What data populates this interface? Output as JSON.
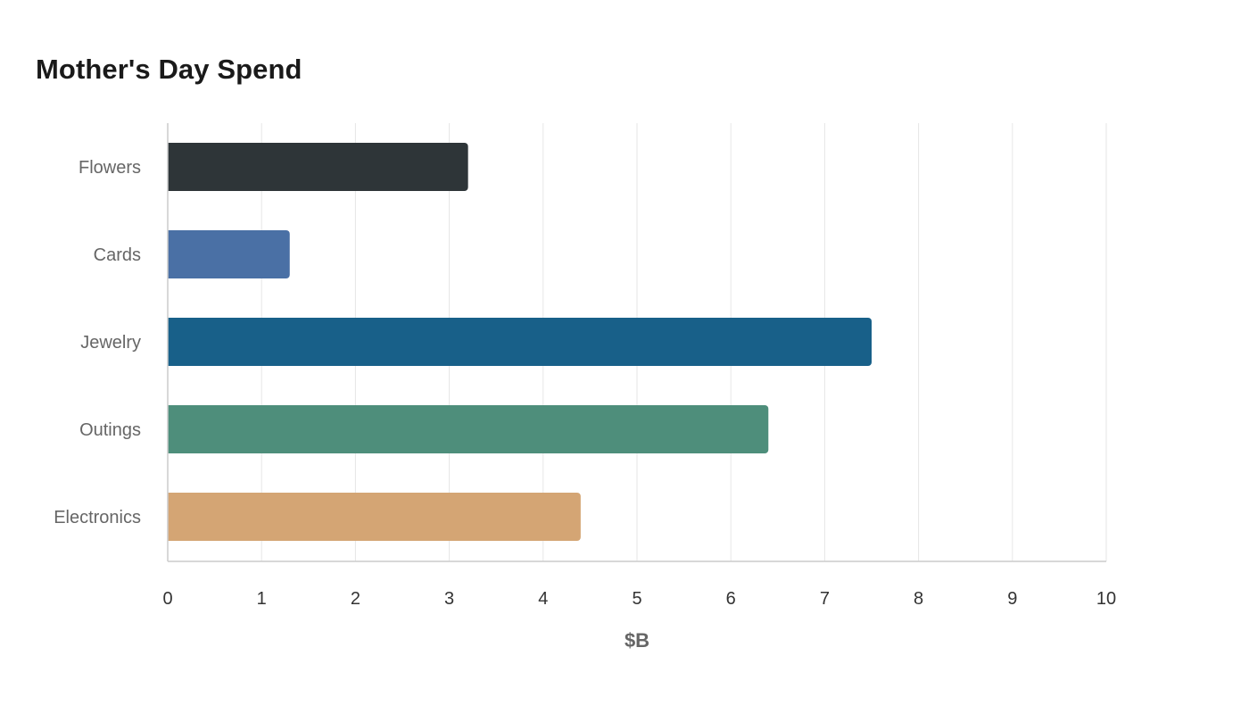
{
  "chart_data": {
    "type": "bar",
    "orientation": "horizontal",
    "title": "Mother's Day Spend",
    "xlabel": "$B",
    "ylabel": "",
    "categories": [
      "Flowers",
      "Cards",
      "Jewelry",
      "Outings",
      "Electronics"
    ],
    "values": [
      3.2,
      1.3,
      7.5,
      6.4,
      4.4
    ],
    "colors": [
      "#2e3538",
      "#4a70a5",
      "#186089",
      "#4e8e7b",
      "#d4a574"
    ],
    "xlim": [
      0,
      10
    ],
    "xticks": [
      "0",
      "1",
      "2",
      "3",
      "4",
      "5",
      "6",
      "7",
      "8",
      "9",
      "10"
    ],
    "grid": "vertical",
    "legend": "none"
  }
}
